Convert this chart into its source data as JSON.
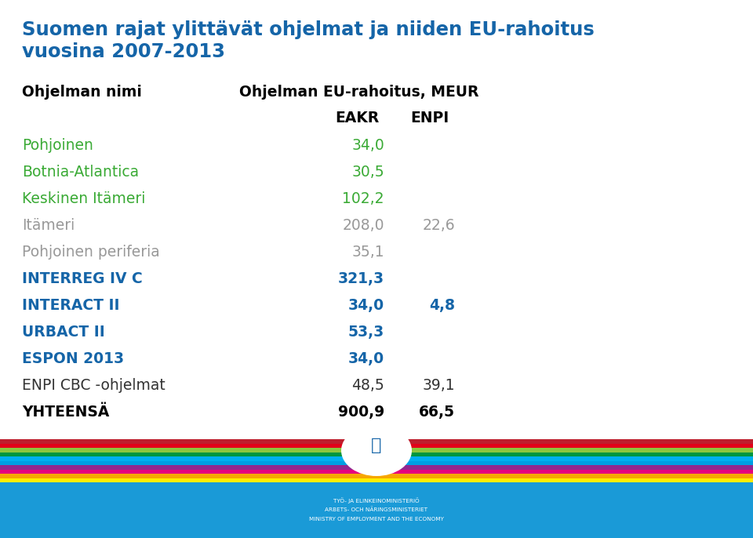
{
  "title_line1": "Suomen rajat ylittävät ohjelmat ja niiden EU-rahoitus",
  "title_line2": "vuosina 2007-2013",
  "title_color": "#1565a8",
  "col_header_name": "Ohjelman nimi",
  "col_header_funding": "Ohjelman EU-rahoitus, MEUR",
  "col_sub1": "EAKR",
  "col_sub2": "ENPI",
  "rows": [
    {
      "name": "Pohjoinen",
      "color": "#3aaa35",
      "bold": false,
      "eakr": "34,0",
      "enpi": ""
    },
    {
      "name": "Botnia-Atlantica",
      "color": "#3aaa35",
      "bold": false,
      "eakr": "30,5",
      "enpi": ""
    },
    {
      "name": "Keskinen Itämeri",
      "color": "#3aaa35",
      "bold": false,
      "eakr": "102,2",
      "enpi": ""
    },
    {
      "name": "Itämeri",
      "color": "#999999",
      "bold": false,
      "eakr": "208,0",
      "enpi": "22,6"
    },
    {
      "name": "Pohjoinen periferia",
      "color": "#999999",
      "bold": false,
      "eakr": "35,1",
      "enpi": ""
    },
    {
      "name": "INTERREG IV C",
      "color": "#1565a8",
      "bold": true,
      "eakr": "321,3",
      "enpi": ""
    },
    {
      "name": "INTERACT II",
      "color": "#1565a8",
      "bold": true,
      "eakr": "34,0",
      "enpi": "4,8"
    },
    {
      "name": "URBACT II",
      "color": "#1565a8",
      "bold": true,
      "eakr": "53,3",
      "enpi": ""
    },
    {
      "name": "ESPON 2013",
      "color": "#1565a8",
      "bold": true,
      "eakr": "34,0",
      "enpi": ""
    },
    {
      "name": "ENPI CBC -ohjelmat",
      "color": "#333333",
      "bold": false,
      "eakr": "48,5",
      "enpi": "39,1"
    },
    {
      "name": "YHTEENSÄ",
      "color": "#000000",
      "bold": true,
      "eakr": "900,9",
      "enpi": "66,5"
    }
  ],
  "stripe_colors": [
    "#ffed00",
    "#f7a600",
    "#e5007e",
    "#92278f",
    "#009fe3",
    "#00b0f0",
    "#009640",
    "#8dc63f",
    "#e2001a",
    "#be1e2d"
  ],
  "footer_bg": "#1a9ad7",
  "background_color": "#ffffff",
  "ministry_lines": [
    "TYÖ- JA ELINKEINOMINISTERIÖ",
    "ARBETS- OCH NÄRINGSMINISTERIET",
    "MINISTRY OF EMPLOYMENT AND THE ECONOMY"
  ]
}
